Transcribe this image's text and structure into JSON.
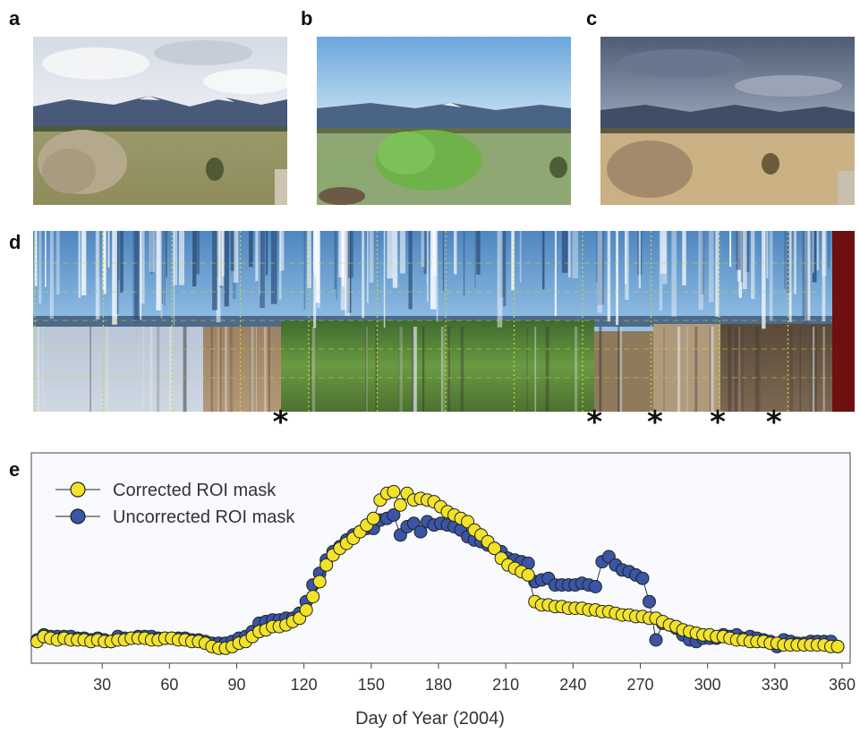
{
  "labels": {
    "a": "a",
    "b": "b",
    "c": "c",
    "d": "d",
    "e": "e"
  },
  "photos": {
    "a": {
      "season": "spring-dormant"
    },
    "b": {
      "season": "summer-green"
    },
    "c": {
      "season": "autumn-senescent"
    }
  },
  "strip": {
    "markers": [
      "*",
      "*",
      "*",
      "*",
      "*"
    ],
    "marker_day_of_year": [
      110,
      250,
      277,
      305,
      330
    ]
  },
  "colors": {
    "corrected": "#f2e22a",
    "uncorrected": "#3a55a6",
    "plot_background": "#f8fafd"
  },
  "chart_data": {
    "type": "scatter",
    "xlabel": "Day of Year (2004)",
    "ylabel": "",
    "xlim": [
      0,
      362
    ],
    "xticks": [
      30,
      60,
      90,
      120,
      150,
      180,
      210,
      240,
      270,
      300,
      330,
      360
    ],
    "ylim": [
      0,
      1
    ],
    "grid": false,
    "legend_position": "top-left",
    "series": [
      {
        "name": "Corrected ROI mask",
        "x": [
          1,
          4,
          7,
          10,
          13,
          16,
          19,
          22,
          25,
          28,
          31,
          34,
          37,
          40,
          43,
          46,
          49,
          52,
          55,
          58,
          61,
          64,
          67,
          70,
          73,
          76,
          79,
          82,
          85,
          88,
          91,
          94,
          97,
          100,
          103,
          106,
          109,
          112,
          115,
          118,
          121,
          124,
          127,
          130,
          133,
          136,
          139,
          142,
          145,
          148,
          151,
          154,
          157,
          160,
          163,
          166,
          169,
          172,
          175,
          178,
          181,
          184,
          187,
          190,
          193,
          196,
          199,
          202,
          205,
          208,
          211,
          214,
          217,
          220,
          223,
          226,
          229,
          232,
          235,
          238,
          241,
          244,
          247,
          250,
          253,
          256,
          259,
          262,
          265,
          268,
          271,
          274,
          277,
          280,
          283,
          286,
          289,
          292,
          295,
          298,
          301,
          304,
          307,
          310,
          313,
          316,
          319,
          322,
          325,
          328,
          331,
          334,
          337,
          340,
          343,
          346,
          349,
          352,
          355,
          358
        ],
        "y": [
          0.06,
          0.09,
          0.08,
          0.07,
          0.08,
          0.07,
          0.07,
          0.07,
          0.06,
          0.07,
          0.06,
          0.06,
          0.07,
          0.07,
          0.08,
          0.08,
          0.08,
          0.07,
          0.07,
          0.08,
          0.08,
          0.07,
          0.07,
          0.06,
          0.06,
          0.05,
          0.03,
          0.02,
          0.02,
          0.03,
          0.05,
          0.06,
          0.09,
          0.12,
          0.13,
          0.15,
          0.15,
          0.16,
          0.18,
          0.2,
          0.25,
          0.33,
          0.42,
          0.52,
          0.58,
          0.62,
          0.65,
          0.68,
          0.72,
          0.76,
          0.8,
          0.91,
          0.95,
          0.96,
          0.88,
          0.95,
          0.91,
          0.92,
          0.91,
          0.9,
          0.87,
          0.84,
          0.82,
          0.8,
          0.78,
          0.73,
          0.7,
          0.66,
          0.62,
          0.56,
          0.52,
          0.5,
          0.48,
          0.46,
          0.3,
          0.28,
          0.28,
          0.27,
          0.27,
          0.26,
          0.26,
          0.26,
          0.25,
          0.25,
          0.24,
          0.24,
          0.23,
          0.22,
          0.22,
          0.21,
          0.21,
          0.2,
          0.2,
          0.18,
          0.16,
          0.15,
          0.13,
          0.12,
          0.11,
          0.1,
          0.1,
          0.09,
          0.09,
          0.08,
          0.07,
          0.07,
          0.06,
          0.06,
          0.06,
          0.05,
          0.05,
          0.04,
          0.04,
          0.04,
          0.04,
          0.04,
          0.04,
          0.04,
          0.03,
          0.03
        ]
      },
      {
        "name": "Uncorrected ROI mask",
        "x": [
          1,
          4,
          7,
          10,
          13,
          16,
          19,
          22,
          25,
          28,
          31,
          34,
          37,
          40,
          43,
          46,
          49,
          52,
          55,
          58,
          61,
          64,
          67,
          70,
          73,
          76,
          79,
          82,
          85,
          88,
          91,
          94,
          97,
          100,
          103,
          106,
          109,
          112,
          115,
          118,
          121,
          124,
          127,
          130,
          133,
          136,
          139,
          142,
          145,
          148,
          151,
          154,
          157,
          160,
          163,
          166,
          169,
          172,
          175,
          178,
          181,
          184,
          187,
          190,
          193,
          196,
          199,
          202,
          205,
          208,
          211,
          214,
          217,
          220,
          223,
          226,
          229,
          232,
          235,
          238,
          241,
          244,
          247,
          250,
          253,
          256,
          259,
          262,
          265,
          268,
          271,
          274,
          277,
          280,
          283,
          286,
          289,
          292,
          295,
          298,
          301,
          304,
          307,
          310,
          313,
          316,
          319,
          322,
          325,
          328,
          331,
          334,
          337,
          340,
          343,
          346,
          349,
          352,
          355,
          358
        ],
        "y": [
          0.07,
          0.1,
          0.09,
          0.09,
          0.09,
          0.09,
          0.08,
          0.08,
          0.07,
          0.08,
          0.07,
          0.06,
          0.09,
          0.08,
          0.08,
          0.09,
          0.09,
          0.09,
          0.08,
          0.08,
          0.08,
          0.08,
          0.08,
          0.07,
          0.07,
          0.06,
          0.05,
          0.05,
          0.05,
          0.06,
          0.08,
          0.09,
          0.12,
          0.17,
          0.18,
          0.19,
          0.19,
          0.2,
          0.2,
          0.23,
          0.3,
          0.4,
          0.47,
          0.55,
          0.6,
          0.63,
          0.67,
          0.7,
          0.72,
          0.74,
          0.74,
          0.79,
          0.8,
          0.82,
          0.7,
          0.75,
          0.77,
          0.72,
          0.78,
          0.76,
          0.77,
          0.76,
          0.75,
          0.73,
          0.69,
          0.67,
          0.66,
          0.64,
          0.62,
          0.6,
          0.56,
          0.55,
          0.54,
          0.53,
          0.42,
          0.43,
          0.44,
          0.4,
          0.4,
          0.4,
          0.4,
          0.41,
          0.4,
          0.39,
          0.54,
          0.57,
          0.52,
          0.49,
          0.48,
          0.46,
          0.44,
          0.3,
          0.07,
          0.17,
          0.16,
          0.14,
          0.1,
          0.07,
          0.06,
          0.08,
          0.08,
          0.08,
          0.1,
          0.09,
          0.1,
          0.08,
          0.09,
          0.08,
          0.07,
          0.06,
          0.03,
          0.07,
          0.06,
          0.05,
          0.05,
          0.06,
          0.06,
          0.06,
          0.06,
          0.03
        ]
      }
    ]
  }
}
